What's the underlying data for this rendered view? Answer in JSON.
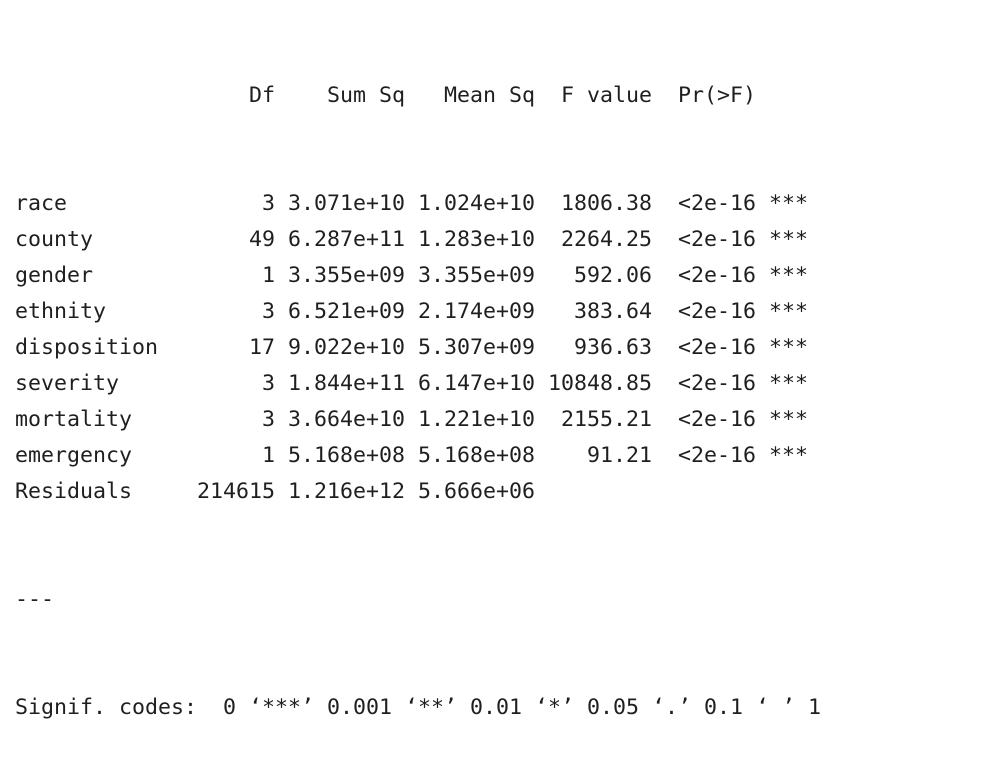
{
  "anova": {
    "headers": {
      "term": "",
      "df": "Df",
      "sum_sq": "Sum Sq",
      "mean_sq": "Mean Sq",
      "f_value": "F value",
      "p_value": "Pr(>F)",
      "stars": ""
    },
    "rows": [
      {
        "term": "race",
        "df": "3",
        "sum_sq": "3.071e+10",
        "mean_sq": "1.024e+10",
        "f_value": "1806.38",
        "p_value": "<2e-16",
        "stars": "***"
      },
      {
        "term": "county",
        "df": "49",
        "sum_sq": "6.287e+11",
        "mean_sq": "1.283e+10",
        "f_value": "2264.25",
        "p_value": "<2e-16",
        "stars": "***"
      },
      {
        "term": "gender",
        "df": "1",
        "sum_sq": "3.355e+09",
        "mean_sq": "3.355e+09",
        "f_value": "592.06",
        "p_value": "<2e-16",
        "stars": "***"
      },
      {
        "term": "ethnity",
        "df": "3",
        "sum_sq": "6.521e+09",
        "mean_sq": "2.174e+09",
        "f_value": "383.64",
        "p_value": "<2e-16",
        "stars": "***"
      },
      {
        "term": "disposition",
        "df": "17",
        "sum_sq": "9.022e+10",
        "mean_sq": "5.307e+09",
        "f_value": "936.63",
        "p_value": "<2e-16",
        "stars": "***"
      },
      {
        "term": "severity",
        "df": "3",
        "sum_sq": "1.844e+11",
        "mean_sq": "6.147e+10",
        "f_value": "10848.85",
        "p_value": "<2e-16",
        "stars": "***"
      },
      {
        "term": "mortality",
        "df": "3",
        "sum_sq": "3.664e+10",
        "mean_sq": "1.221e+10",
        "f_value": "2155.21",
        "p_value": "<2e-16",
        "stars": "***"
      },
      {
        "term": "emergency",
        "df": "1",
        "sum_sq": "5.168e+08",
        "mean_sq": "5.168e+08",
        "f_value": "91.21",
        "p_value": "<2e-16",
        "stars": "***"
      },
      {
        "term": "Residuals",
        "df": "214615",
        "sum_sq": "1.216e+12",
        "mean_sq": "5.666e+06",
        "f_value": "",
        "p_value": "",
        "stars": ""
      }
    ],
    "separator": "---",
    "signif_codes": "Signif. codes:  0 ‘***’ 0.001 ‘**’ 0.01 ‘*’ 0.05 ‘.’ 0.1 ‘ ’ 1"
  }
}
